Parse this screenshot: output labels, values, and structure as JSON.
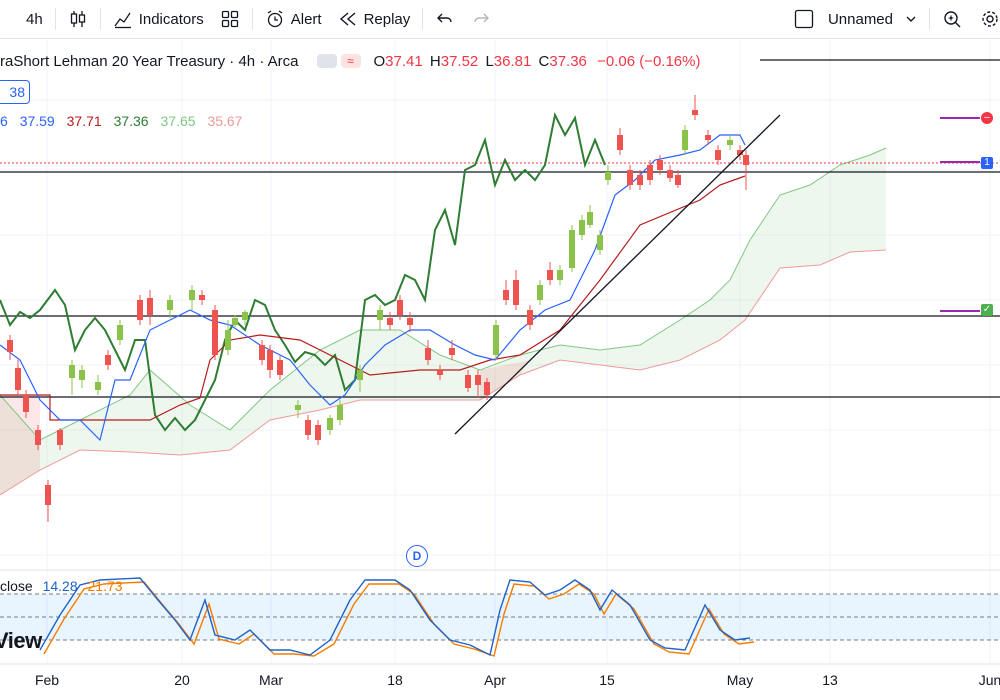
{
  "toolbar": {
    "interval": "4h",
    "indicators": "Indicators",
    "alert": "Alert",
    "replay": "Replay",
    "layout_name": "Unnamed"
  },
  "legend": {
    "title": "raShort Lehman 20 Year Treasury · 4h · Arca",
    "o_label": "O",
    "o": "37.41",
    "h_label": "H",
    "h": "37.52",
    "l_label": "L",
    "l": "36.81",
    "c_label": "C",
    "c": "37.36",
    "change": "−0.06 (−0.16%)"
  },
  "price_box": "38",
  "ichimoku": {
    "v0": "6",
    "v1": "37.59",
    "v2": "37.71",
    "v3": "37.36",
    "v4": "37.65",
    "v5": "35.67"
  },
  "stoch": {
    "label": "close",
    "k": "14.28",
    "d": "21.73"
  },
  "watermark": "View",
  "event_marker": "D",
  "xaxis": [
    "Feb",
    "20",
    "Mar",
    "18",
    "Apr",
    "15",
    "May",
    "13",
    "Jun"
  ],
  "colors": {
    "up": "#8bc34a",
    "down": "#ef5350",
    "conversion": "#2962ff",
    "base": "#b71c1c",
    "lagging": "#2e7d32",
    "stoch_k": "#1e63c5",
    "stoch_d": "#f57c00",
    "purple": "#9c27b0"
  }
}
